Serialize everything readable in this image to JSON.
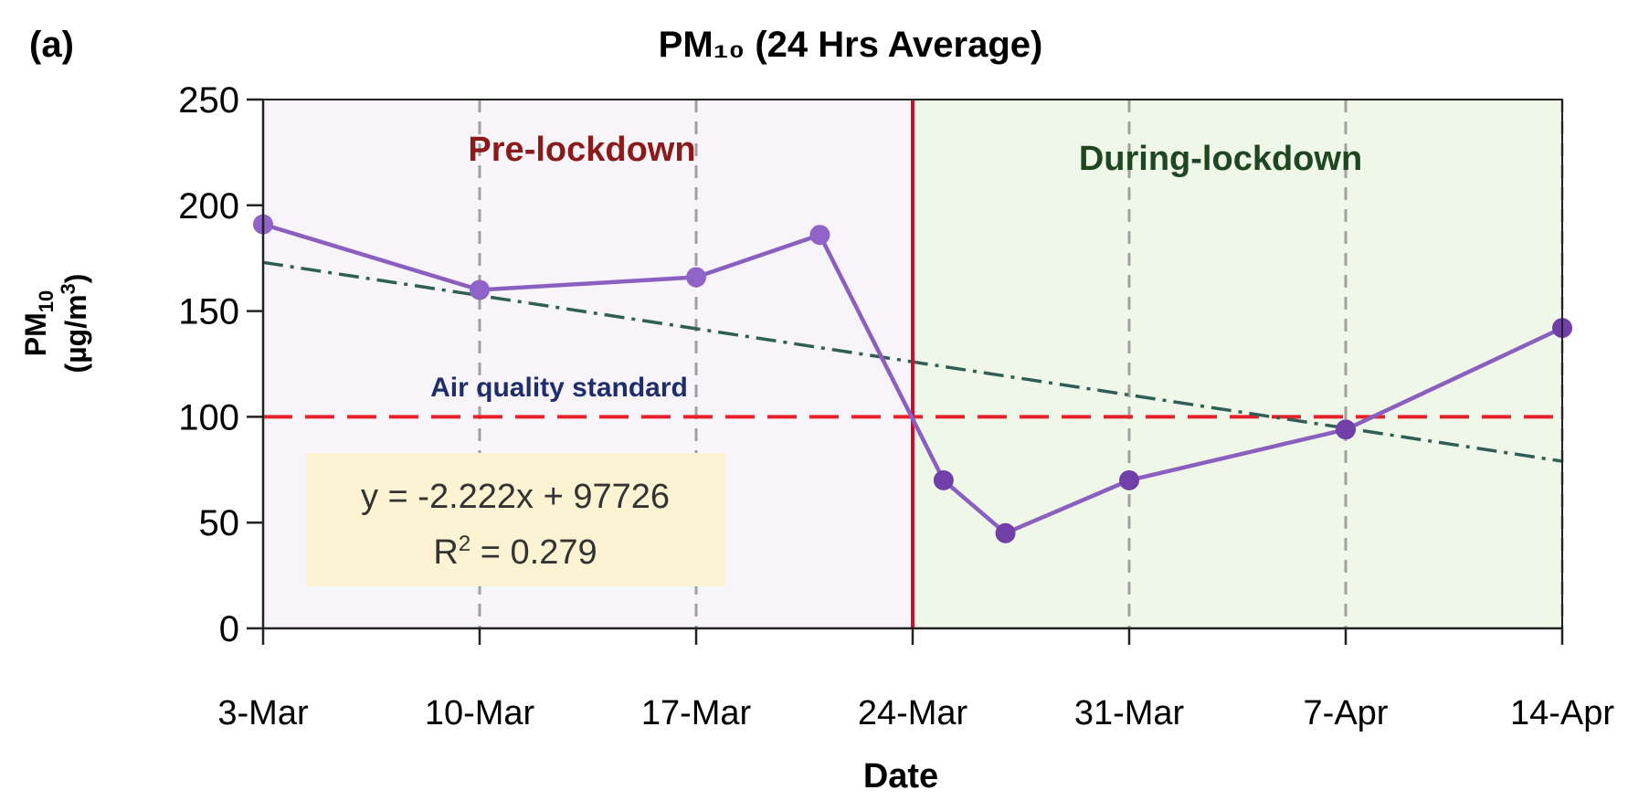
{
  "panel_label": "(a)",
  "chart_data": {
    "type": "line",
    "title": "PM₁₀ (24 Hrs Average)",
    "ylabel_line1": "PM",
    "ylabel_sub": "10",
    "ylabel_line2": "(µg/m",
    "ylabel_sup": "3",
    "ylabel_close": ")",
    "xlabel": "Date",
    "ylim": [
      0,
      250
    ],
    "y_ticks": [
      "0",
      "50",
      "100",
      "150",
      "200",
      "250"
    ],
    "x_ticks": [
      "3-Mar",
      "10-Mar",
      "17-Mar",
      "24-Mar",
      "31-Mar",
      "7-Apr",
      "14-Apr"
    ],
    "x_range_days": {
      "start": "3-Mar",
      "end": "14-Apr"
    },
    "series": [
      {
        "color": "#8B5FBF",
        "marker_color": "#9063C8",
        "during_color": "#7040A8",
        "points": [
          {
            "date": "3-Mar",
            "value": 191
          },
          {
            "date": "10-Mar",
            "value": 160
          },
          {
            "date": "17-Mar",
            "value": 166
          },
          {
            "date": "21-Mar",
            "value": 186
          },
          {
            "date": "25-Mar",
            "value": 70
          },
          {
            "date": "27-Mar",
            "value": 45
          },
          {
            "date": "31-Mar",
            "value": 70
          },
          {
            "date": "7-Apr",
            "value": 94
          },
          {
            "date": "14-Apr",
            "value": 142
          }
        ]
      }
    ],
    "trendline": {
      "color": "#2F5E55",
      "style": "dash-dot",
      "from": {
        "date": "3-Mar",
        "value": 173
      },
      "to": {
        "date": "14-Apr",
        "value": 79
      }
    },
    "equation_box": {
      "line1": "y = -2.222x + 97726",
      "line2_prefix": "R",
      "line2_sup": "2",
      "line2_suffix": " = 0.279",
      "background": "#FBF3D2"
    },
    "reference_line": {
      "value": 100,
      "label": "Air quality standard",
      "color": "#E8202A",
      "label_color": "#1F2D6B"
    },
    "regions": [
      {
        "label": "Pre-lockdown",
        "background": "#F7F4FA",
        "label_color": "#8B1A1A",
        "from": "3-Mar",
        "to": "24-Mar"
      },
      {
        "label": "During-lockdown",
        "background": "#EFF7E8",
        "label_color": "#1E4620",
        "from": "24-Mar",
        "to": "14-Apr"
      }
    ],
    "divider": {
      "date": "24-Mar",
      "color": "#C8102E"
    },
    "vertical_gridlines": [
      "10-Mar",
      "17-Mar",
      "31-Mar",
      "7-Apr",
      "14-Apr"
    ],
    "grid": "vertical dashed"
  }
}
